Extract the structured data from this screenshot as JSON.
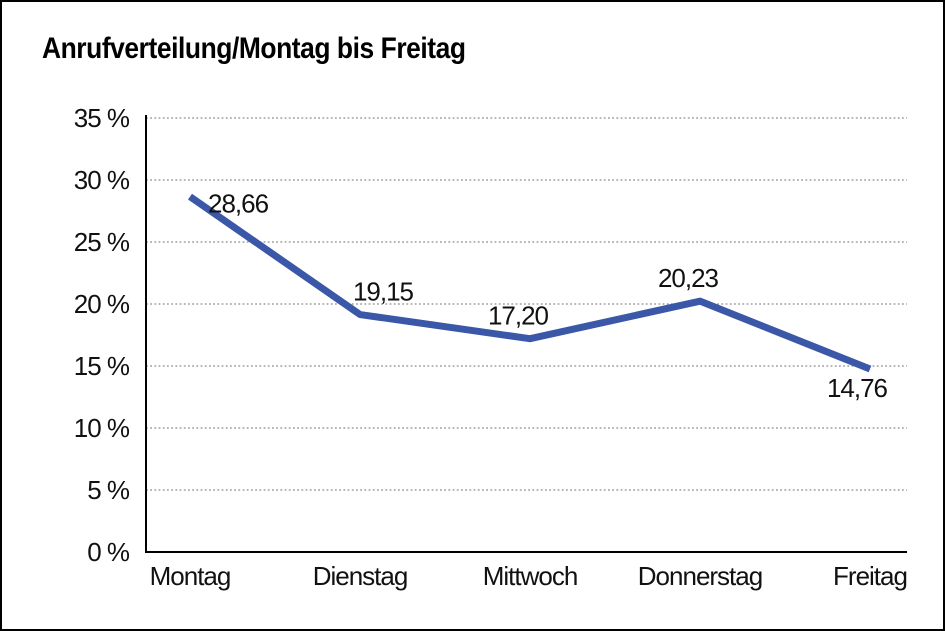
{
  "chart_title": "Anrufverteilung/Montag bis Freitag",
  "chart_data": {
    "type": "line",
    "title": "Anrufverteilung/Montag bis Freitag",
    "categories": [
      "Montag",
      "Dienstag",
      "Mittwoch",
      "Donnerstag",
      "Freitag"
    ],
    "series": [
      {
        "name": "Anrufverteilung",
        "values": [
          28.66,
          19.15,
          17.2,
          20.23,
          14.76
        ]
      }
    ],
    "value_labels": [
      "28,66",
      "19,15",
      "17,20",
      "20,23",
      "14,76"
    ],
    "value_label_positions": [
      "right-of-point",
      "above-right",
      "above-left",
      "above-left",
      "below-point"
    ],
    "xlabel": "",
    "ylabel": "",
    "ylim": [
      0,
      35
    ],
    "y_ticks": [
      0,
      5,
      10,
      15,
      20,
      25,
      30,
      35
    ],
    "y_tick_labels": [
      "0 %",
      "5 %",
      "10 %",
      "15 %",
      "20 %",
      "25 %",
      "30 %",
      "35 %"
    ],
    "grid": {
      "horizontal": "dotted",
      "vertical": "none"
    },
    "legend": "none",
    "colors": {
      "line": "#3A57A8",
      "text": "#111111",
      "axis": "#000000",
      "gridline": "#8a8a8a"
    }
  }
}
